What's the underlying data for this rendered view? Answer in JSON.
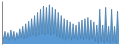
{
  "chart_data": {
    "type": "area",
    "values": [
      15,
      8,
      20,
      8,
      18,
      6,
      22,
      8,
      20,
      6,
      18,
      8,
      24,
      10,
      28,
      8,
      32,
      10,
      36,
      12,
      40,
      14,
      45,
      12,
      50,
      14,
      55,
      16,
      60,
      14,
      58,
      16,
      62,
      14,
      58,
      16,
      55,
      12,
      50,
      10,
      45,
      8,
      40,
      6,
      38,
      8,
      35,
      6,
      32,
      8,
      30,
      6,
      35,
      8,
      38,
      6,
      40,
      8,
      42,
      6,
      38,
      8,
      35,
      4,
      30,
      2,
      55,
      4,
      30,
      2,
      58,
      4,
      28,
      2,
      55,
      4,
      28,
      2,
      52,
      4
    ],
    "color": "#5b9bd5",
    "ylim": [
      0,
      68
    ],
    "tick_labels": false
  }
}
